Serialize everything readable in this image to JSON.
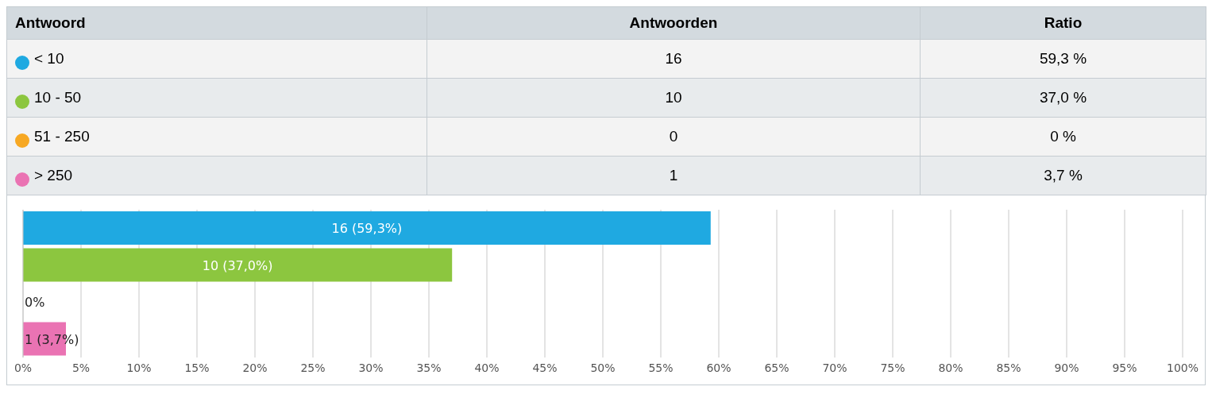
{
  "chart_data": {
    "type": "bar",
    "orientation": "horizontal",
    "categories": [
      null,
      null,
      null,
      null
    ],
    "values": [
      59.3,
      37.0,
      0,
      3.7
    ],
    "colors": [
      "#1fa9e1",
      "#8cc63f",
      "#f7a823",
      "#ea73b3"
    ],
    "value_labels": [
      "16 (59,3%)",
      "10 (37,0%)",
      "0%",
      "1 (3,7%)"
    ],
    "annotations": [
      "Antwoord",
      "Antwoorden",
      "Ratio",
      "< 10",
      "16",
      "59,3 %",
      "10 - 50",
      "10",
      "37,0 %",
      "51 - 250",
      "0",
      "0 %",
      "> 250",
      "1",
      "3,7 %"
    ],
    "xlim": [
      0,
      100
    ],
    "xticks": [
      {
        "value": 0,
        "label": "0%"
      },
      {
        "value": 5,
        "label": "5%"
      },
      {
        "value": 10,
        "label": "10%"
      },
      {
        "value": 15,
        "label": "15%"
      },
      {
        "value": 20,
        "label": "20%"
      },
      {
        "value": 25,
        "label": "25%"
      },
      {
        "value": 30,
        "label": "30%"
      },
      {
        "value": 35,
        "label": "35%"
      },
      {
        "value": 40,
        "label": "40%"
      },
      {
        "value": 45,
        "label": "45%"
      },
      {
        "value": 50,
        "label": "50%"
      },
      {
        "value": 55,
        "label": "55%"
      },
      {
        "value": 60,
        "label": "60%"
      },
      {
        "value": 65,
        "label": "65%"
      },
      {
        "value": 70,
        "label": "70%"
      },
      {
        "value": 75,
        "label": "75%"
      },
      {
        "value": 80,
        "label": "80%"
      },
      {
        "value": 85,
        "label": "85%"
      },
      {
        "value": 90,
        "label": "90%"
      },
      {
        "value": 95,
        "label": "95%"
      },
      {
        "value": 100,
        "label": "100%"
      }
    ],
    "grid": "x",
    "tick_labels": "x"
  }
}
